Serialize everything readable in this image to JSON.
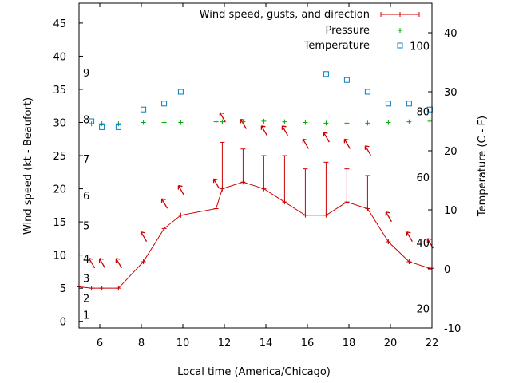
{
  "chart_data": {
    "type": "line",
    "xlabel": "Local time (America/Chicago)",
    "ylabel_left": "Wind speed (kt - Beaufort)",
    "ylabel_right": "Temperature (C - F)",
    "xlim": [
      5,
      22
    ],
    "ylim_left": [
      -1,
      48
    ],
    "ylim_right": [
      -10,
      45
    ],
    "xticks": [
      6,
      8,
      10,
      12,
      14,
      16,
      18,
      20,
      22
    ],
    "yticks_left": [
      0,
      5,
      10,
      15,
      20,
      25,
      30,
      35,
      40,
      45
    ],
    "yticks_right": [
      -10,
      0,
      10,
      20,
      30,
      40
    ],
    "beaufort_labels": [
      {
        "label": "1",
        "y": 1.0
      },
      {
        "label": "2",
        "y": 3.5
      },
      {
        "label": "3",
        "y": 6.5
      },
      {
        "label": "4",
        "y": 9.5
      },
      {
        "label": "5",
        "y": 14.5
      },
      {
        "label": "6",
        "y": 19.0
      },
      {
        "label": "7",
        "y": 24.5
      },
      {
        "label": "8",
        "y": 30.5
      },
      {
        "label": "9",
        "y": 37.5
      }
    ],
    "fahrenheit_labels": [
      {
        "label": "20",
        "f": 20
      },
      {
        "label": "40",
        "f": 40
      },
      {
        "label": "60",
        "f": 60
      },
      {
        "label": "80",
        "f": 80
      },
      {
        "label": "100",
        "f": 100
      }
    ],
    "legend": {
      "placement": "top-right",
      "entries": [
        {
          "label": "Wind speed, gusts, and direction",
          "color": "#cc0000",
          "symbol": "errorbar"
        },
        {
          "label": "Pressure",
          "color": "#00aa00",
          "symbol": "plus"
        },
        {
          "label": "Temperature",
          "color": "#0080c0",
          "symbol": "square"
        }
      ]
    },
    "series": [
      {
        "name": "Wind speed, gusts, and direction",
        "color": "#cc0000",
        "x": [
          5,
          5.6,
          6.1,
          6.9,
          8.1,
          9.1,
          9.9,
          11.6,
          11.9,
          12.9,
          13.9,
          14.9,
          15.9,
          16.9,
          17.9,
          18.9,
          19.9,
          20.9,
          21.9,
          22
        ],
        "y": [
          5.2,
          5,
          5,
          5,
          9,
          14,
          16,
          17,
          20,
          21,
          20,
          18,
          16,
          16,
          18,
          17,
          12,
          9,
          8,
          8
        ],
        "gust": [
          null,
          null,
          null,
          null,
          null,
          null,
          null,
          null,
          27,
          26,
          25,
          25,
          23,
          24,
          23,
          22,
          null,
          null,
          null,
          null
        ]
      },
      {
        "name": "Wind direction",
        "color": "#cc0000",
        "x": [
          5.6,
          6.1,
          6.9,
          8.1,
          9.1,
          9.9,
          11.6,
          11.9,
          12.9,
          13.9,
          14.9,
          15.9,
          16.9,
          17.9,
          18.9,
          19.9,
          20.9,
          21.9
        ],
        "y": [
          9,
          9,
          9,
          13,
          18,
          20,
          21,
          31,
          30,
          29,
          29,
          27,
          28,
          27,
          26,
          16,
          13,
          12
        ]
      },
      {
        "name": "Pressure",
        "color": "#00aa00",
        "x": [
          5.6,
          6.1,
          6.9,
          8.1,
          9.1,
          9.9,
          11.6,
          11.9,
          12.9,
          13.9,
          14.9,
          15.9,
          16.9,
          17.9,
          18.9,
          19.9,
          20.9,
          21.9
        ],
        "y": [
          29.8,
          29.8,
          29.8,
          30,
          30,
          30,
          30.1,
          30.1,
          30.1,
          30.2,
          30.1,
          30,
          29.9,
          29.9,
          29.9,
          30,
          30.1,
          30.2
        ]
      },
      {
        "name": "Temperature",
        "color": "#0080c0",
        "x": [
          5.6,
          6.1,
          6.9,
          8.1,
          9.1,
          9.9,
          16.9,
          17.9,
          18.9,
          19.9,
          20.9,
          21.9
        ],
        "y": [
          25,
          24,
          24,
          27,
          28,
          30,
          33,
          32,
          30,
          28,
          28,
          27
        ]
      }
    ]
  }
}
